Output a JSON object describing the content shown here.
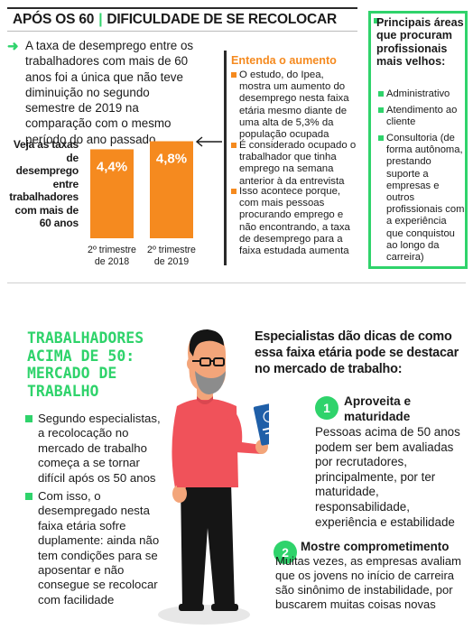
{
  "top": {
    "header_left": "APÓS OS 60",
    "header_separator": "|",
    "header_right": "DIFICULDADE DE SE RECOLOCAR",
    "intro": "A taxa de desemprego entre os trabalhadores com mais de 60 anos foi a única que não teve diminuição no segundo semestre de 2019 na comparação com o mesmo período do ano passado",
    "chart_side_label": "Veja as taxas de desemprego entre trabalhadores com mais de 60 anos"
  },
  "chart_data": {
    "type": "bar",
    "categories": [
      "2º trimestre de 2018",
      "2º trimestre de 2019"
    ],
    "values": [
      4.4,
      4.8
    ],
    "data_labels": [
      "4,4%",
      "4,8%"
    ],
    "ylim": [
      0,
      5
    ],
    "grid": false,
    "bar_color": "#f58a1f",
    "label_color": "#ffffff"
  },
  "entenda": {
    "title": "Entenda o aumento",
    "items": [
      "O estudo, do Ipea, mostra um aumento do desemprego nesta faixa etária mesmo diante de uma alta de 5,3% da população ocupada",
      "É considerado ocupado o trabalhador que tinha emprego na semana anterior à da entrevista",
      "Isso acontece porque, com mais pessoas procurando emprego e não encontrando, a taxa de desemprego para a faixa estudada aumenta"
    ]
  },
  "areas": {
    "title": "Principais áreas que procuram profissionais mais velhos:",
    "items": [
      "Administrativo",
      "Atendimento ao cliente",
      "Consultoria (de forma autônoma, prestando suporte a empresas e outros profissionais com a experiência que conquistou ao longo da carreira)"
    ]
  },
  "bottom": {
    "title_line1": "TRABALHADORES",
    "title_line2": "ACIMA DE 50:",
    "title_line3": "MERCADO DE",
    "title_line4": "TRABALHO",
    "items": [
      "Segundo especialistas, a recolocação no mercado de trabalho começa a se tornar difícil após os 50 anos",
      "Com isso, o desempregado nesta faixa etária sofre duplamente: ainda não tem condições para se aposentar e não consegue se recolocar com facilidade"
    ],
    "tips_header": "Especialistas dão dicas de como essa faixa etária pode se destacar no mercado de trabalho:",
    "tips": [
      {
        "number": "1",
        "title": "Aproveita e maturidade",
        "text": "Pessoas acima de 50 anos podem ser bem avaliadas por recrutadores, principalmente, por ter maturidade, responsabilidade, experiência e estabilidade"
      },
      {
        "number": "2",
        "title": "Mostre comprometimento",
        "text": "Muitas vezes, as empresas avaliam que os jovens no início de carreira são sinônimo de instabilidade, por buscarem muitas coisas novas"
      }
    ]
  },
  "colors": {
    "accent_green": "#2fd36b",
    "accent_orange": "#f58a1f",
    "shirt_red": "#f0525a",
    "skin": "#f3a57a"
  },
  "icons": [
    "arrow-right-icon",
    "arrow-left-icon",
    "man-holding-work-card-illustration"
  ]
}
